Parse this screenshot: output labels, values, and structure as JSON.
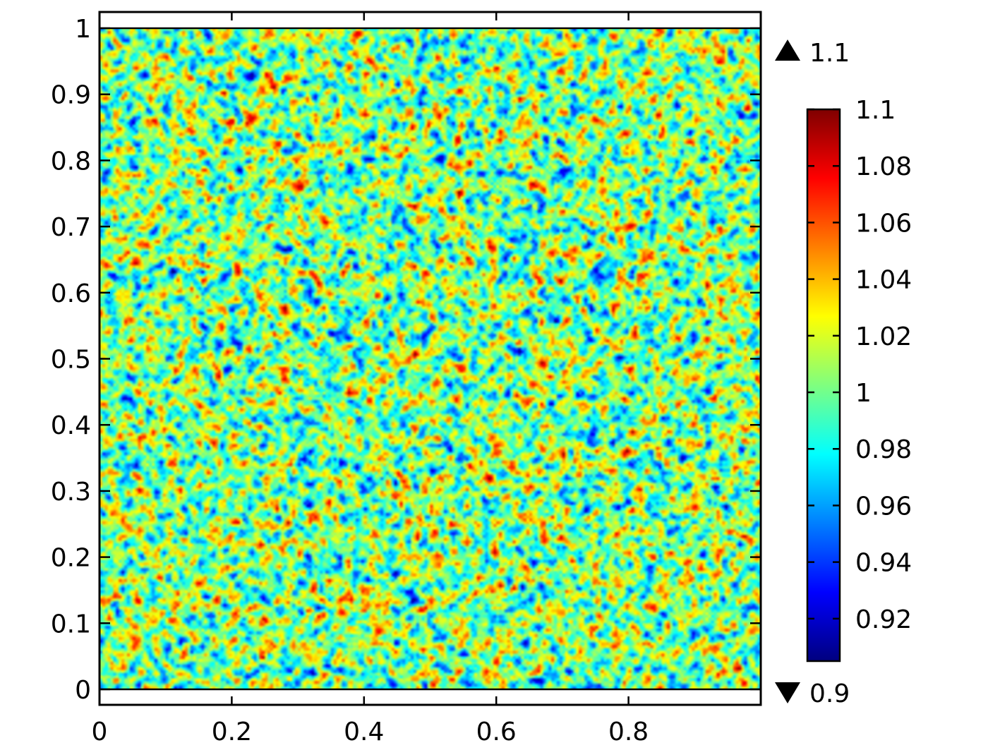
{
  "chart_data": {
    "type": "heatmap",
    "title": "",
    "xlabel": "",
    "ylabel": "",
    "xlim": [
      0,
      1
    ],
    "ylim": [
      0,
      1
    ],
    "x_ticks": [
      "0",
      "0.2",
      "0.4",
      "0.6",
      "0.8"
    ],
    "x_tick_values": [
      0,
      0.2,
      0.4,
      0.6,
      0.8
    ],
    "y_ticks": [
      "0",
      "0.1",
      "0.2",
      "0.3",
      "0.4",
      "0.5",
      "0.6",
      "0.7",
      "0.8",
      "0.9",
      "1"
    ],
    "y_tick_values": [
      0,
      0.1,
      0.2,
      0.3,
      0.4,
      0.5,
      0.6,
      0.7,
      0.8,
      0.9,
      1
    ],
    "value_range": [
      0.9,
      1.1
    ],
    "mean_value": 1.0,
    "colormap": "jet",
    "colorbar": {
      "max_label": "1.1",
      "min_label": "0.9",
      "tick_labels": [
        "1.1",
        "1.08",
        "1.06",
        "1.04",
        "1.02",
        "1",
        "0.98",
        "0.96",
        "0.94",
        "0.92"
      ],
      "tick_values": [
        1.1,
        1.08,
        1.06,
        1.04,
        1.02,
        1.0,
        0.98,
        0.96,
        0.94,
        0.92
      ],
      "range": [
        0.905,
        1.1
      ]
    },
    "grid": false
  },
  "colors": {
    "jet": [
      "#00007f",
      "#0000ff",
      "#007fff",
      "#00ffff",
      "#7fff7f",
      "#ffff00",
      "#ff7f00",
      "#ff0000",
      "#7f0000"
    ],
    "axis": "#000000"
  },
  "icons": {
    "max_marker": "triangle-up-icon",
    "min_marker": "triangle-down-icon"
  }
}
